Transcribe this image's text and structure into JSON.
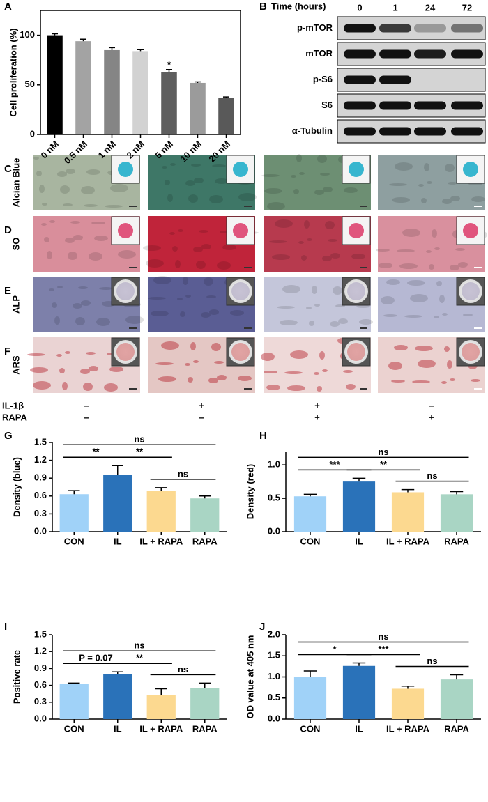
{
  "panel_letters": [
    "A",
    "B",
    "C",
    "D",
    "E",
    "F",
    "G",
    "H",
    "I",
    "J"
  ],
  "blot": {
    "header": "Time (hours)",
    "times": [
      "0",
      "1",
      "24",
      "72"
    ],
    "proteins": [
      "p-mTOR",
      "mTOR",
      "p-S6",
      "S6",
      "α-Tubulin"
    ]
  },
  "staining": {
    "rows": [
      "Alcian Blue",
      "SO",
      "ALP",
      "ARS"
    ]
  },
  "treatments": {
    "rows": [
      {
        "name": "IL-1β",
        "signs": [
          "–",
          "+",
          "+",
          "–"
        ]
      },
      {
        "name": "RAPA",
        "signs": [
          "–",
          "–",
          "+",
          "+"
        ]
      }
    ]
  },
  "chart_data": [
    {
      "type": "bar",
      "ylabel": "Cell proliferation (%)",
      "categories": [
        "0 nM",
        "0.5 nM",
        "1 nM",
        "2 nM",
        "5 nM",
        "10 nM",
        "20 nM"
      ],
      "values": [
        100,
        94,
        85,
        84,
        63,
        52,
        37
      ],
      "errors": [
        1.5,
        2,
        2.5,
        1.5,
        2.5,
        1,
        0.8
      ],
      "colors": [
        "#000000",
        "#a3a3a3",
        "#858585",
        "#d2d2d2",
        "#5e5e5e",
        "#9b9b9b",
        "#595959"
      ],
      "ylim": [
        0,
        125
      ],
      "yticks": [
        0,
        50,
        100
      ],
      "annotations": [
        {
          "category": "5 nM",
          "label": "*"
        }
      ]
    },
    {
      "type": "bar",
      "ylabel": "Density (blue)",
      "categories": [
        "CON",
        "IL",
        "IL + RAPA",
        "RAPA"
      ],
      "values": [
        0.63,
        0.96,
        0.68,
        0.56
      ],
      "errors": [
        0.06,
        0.15,
        0.06,
        0.04
      ],
      "colors": [
        "#a0d2f8",
        "#2a72b9",
        "#fcd990",
        "#a9d5c4"
      ],
      "ylim": [
        0,
        1.5
      ],
      "yticks": [
        {
          "value": 0,
          "label": "0.0"
        },
        0.3,
        0.6,
        0.9,
        1.2,
        1.5
      ],
      "brackets": [
        {
          "from": "CON",
          "to": "IL",
          "label": "**"
        },
        {
          "from": "IL",
          "to": "IL + RAPA",
          "label": "**"
        },
        {
          "from": "CON",
          "to": "RAPA",
          "label": "ns"
        },
        {
          "from": "IL + RAPA",
          "to": "RAPA",
          "label": "ns"
        }
      ]
    },
    {
      "type": "bar",
      "ylabel": "Density (red)",
      "categories": [
        "CON",
        "IL",
        "IL + RAPA",
        "RAPA"
      ],
      "values": [
        0.53,
        0.75,
        0.59,
        0.56
      ],
      "errors": [
        0.03,
        0.05,
        0.04,
        0.04
      ],
      "colors": [
        "#a0d2f8",
        "#2a72b9",
        "#fcd990",
        "#a9d5c4"
      ],
      "ylim": [
        0,
        1.2
      ],
      "yticks": [
        {
          "value": 0,
          "label": "0.0"
        },
        0.5,
        {
          "value": 1,
          "label": "1.0"
        }
      ],
      "brackets": [
        {
          "from": "CON",
          "to": "IL",
          "label": "***"
        },
        {
          "from": "IL",
          "to": "IL + RAPA",
          "label": "**"
        },
        {
          "from": "CON",
          "to": "RAPA",
          "label": "ns"
        },
        {
          "from": "IL + RAPA",
          "to": "RAPA",
          "label": "ns"
        }
      ]
    },
    {
      "type": "bar",
      "ylabel": "Positive rate",
      "categories": [
        "CON",
        "IL",
        "IL + RAPA",
        "RAPA"
      ],
      "values": [
        0.62,
        0.8,
        0.43,
        0.55
      ],
      "errors": [
        0.02,
        0.04,
        0.11,
        0.09
      ],
      "colors": [
        "#a0d2f8",
        "#2a72b9",
        "#fcd990",
        "#a9d5c4"
      ],
      "ylim": [
        0,
        1.5
      ],
      "yticks": [
        {
          "value": 0,
          "label": "0.0"
        },
        0.3,
        0.6,
        0.9,
        1.2,
        1.5
      ],
      "brackets": [
        {
          "from": "CON",
          "to": "IL",
          "label": "P = 0.07"
        },
        {
          "from": "IL",
          "to": "IL + RAPA",
          "label": "**"
        },
        {
          "from": "CON",
          "to": "RAPA",
          "label": "ns"
        },
        {
          "from": "IL + RAPA",
          "to": "RAPA",
          "label": "ns"
        }
      ]
    },
    {
      "type": "bar",
      "ylabel": "OD value at 405 nm",
      "categories": [
        "CON",
        "IL",
        "IL + RAPA",
        "RAPA"
      ],
      "values": [
        1.0,
        1.26,
        0.72,
        0.94
      ],
      "errors": [
        0.14,
        0.07,
        0.06,
        0.11
      ],
      "colors": [
        "#a0d2f8",
        "#2a72b9",
        "#fcd990",
        "#a9d5c4"
      ],
      "ylim": [
        0,
        2
      ],
      "yticks": [
        {
          "value": 0,
          "label": "0.0"
        },
        0.5,
        {
          "value": 1,
          "label": "1.0"
        },
        1.5,
        {
          "value": 2,
          "label": "2.0"
        }
      ],
      "brackets": [
        {
          "from": "CON",
          "to": "IL",
          "label": "*"
        },
        {
          "from": "IL",
          "to": "IL + RAPA",
          "label": "***"
        },
        {
          "from": "CON",
          "to": "RAPA",
          "label": "ns"
        },
        {
          "from": "IL + RAPA",
          "to": "RAPA",
          "label": "ns"
        }
      ]
    }
  ]
}
